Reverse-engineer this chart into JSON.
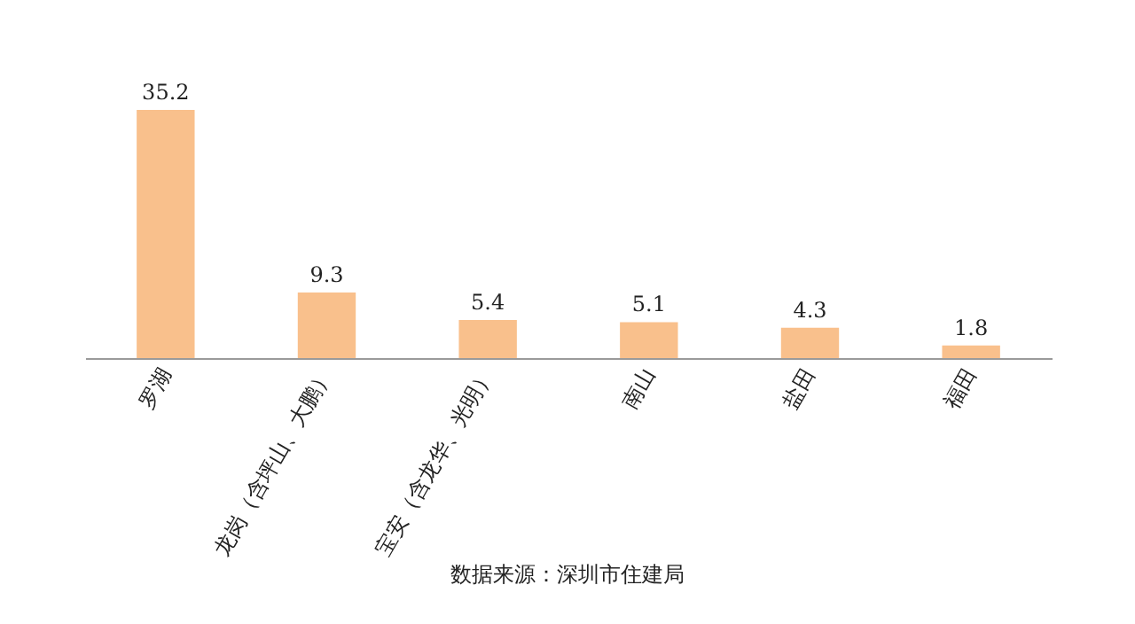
{
  "chart_data": {
    "type": "bar",
    "categories": [
      "罗湖",
      "龙岗（含坪山、大鹏）",
      "宝安（含龙华、光明）",
      "南山",
      "盐田",
      "福田"
    ],
    "values": [
      35.2,
      9.3,
      5.4,
      5.1,
      4.3,
      1.8
    ],
    "color": "#f9c08c",
    "data_labels": true,
    "annotations": [
      "数据来源：深圳市住建局"
    ]
  }
}
